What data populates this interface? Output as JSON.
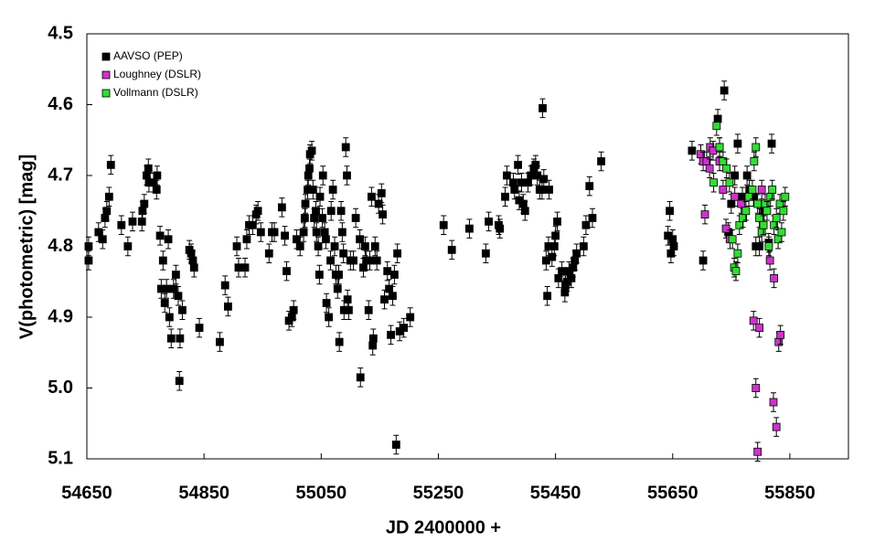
{
  "chart_data": {
    "type": "scatter",
    "x_label": "JD 2400000 +",
    "y_label": "V(photometric) [mag]",
    "xlim": [
      54650,
      55950
    ],
    "ylim": [
      4.5,
      5.1
    ],
    "y_inverted": true,
    "xticks": [
      54650,
      54850,
      55050,
      55250,
      55450,
      55650,
      55850
    ],
    "yticks": [
      4.5,
      4.6,
      4.7,
      4.8,
      4.9,
      {
        "value": 5,
        "label": "5.0"
      },
      5.1
    ],
    "legend": "upper left",
    "series": [
      {
        "name": "AAVSO (PEP)",
        "color": "#000000",
        "yerr": 0.008,
        "x": [
          54653,
          54653,
          54670,
          54677,
          54681,
          54684,
          54688,
          54691,
          54709,
          54720,
          54728,
          54744,
          54745,
          54748,
          54752,
          54755,
          54756,
          54764,
          54769,
          54770,
          54775,
          54780,
          54777,
          54783,
          54786,
          54789,
          54791,
          54794,
          54798,
          54802,
          54806,
          54808,
          54809,
          54813,
          54825,
          54828,
          54831,
          54833,
          54842,
          54877,
          54886,
          54891,
          54906,
          54909,
          54920,
          54923,
          54927,
          54933,
          54939,
          54942,
          54947,
          54961,
          54966,
          54970,
          54983,
          54988,
          54991,
          54995,
          55000,
          55003,
          55008,
          55014,
          55020,
          55022,
          55023,
          55027,
          55028,
          55030,
          55031,
          55034,
          55036,
          55038,
          55041,
          55042,
          55045,
          55047,
          55048,
          55052,
          55053,
          55056,
          55058,
          55059,
          55063,
          55066,
          55067,
          55070,
          55073,
          55075,
          55078,
          55080,
          55081,
          55084,
          55086,
          55088,
          55089,
          55092,
          55094,
          55095,
          55097,
          55100,
          55105,
          55109,
          55116,
          55117,
          55122,
          55125,
          55127,
          55131,
          55133,
          55136,
          55138,
          55139,
          55142,
          55145,
          55148,
          55153,
          55155,
          55158,
          55163,
          55166,
          55169,
          55172,
          55175,
          55178,
          55180,
          55184,
          55191,
          55202,
          55259,
          55273,
          55303,
          55331,
          55336,
          55353,
          55355,
          55364,
          55367,
          55378,
          55380,
          55386,
          55388,
          55392,
          55395,
          55398,
          55403,
          55408,
          55413,
          55416,
          55419,
          55423,
          55427,
          55428,
          55430,
          55434,
          55436,
          55438,
          55439,
          55444,
          55448,
          55450,
          55453,
          55455,
          55461,
          55466,
          55467,
          55470,
          55473,
          55477,
          55480,
          55483,
          55486,
          55498,
          55502,
          55508,
          55513,
          55528,
          55642,
          55645,
          55647,
          55650,
          55652,
          55683,
          55702,
          55727,
          55730,
          55738,
          55745,
          55750,
          55756,
          55761,
          55769,
          55777,
          55781,
          55788,
          55792,
          55798,
          55806,
          55814,
          55819
        ],
        "y": [
          4.8,
          4.82,
          4.78,
          4.79,
          4.76,
          4.75,
          4.73,
          4.685,
          4.77,
          4.8,
          4.765,
          4.765,
          4.75,
          4.74,
          4.7,
          4.69,
          4.71,
          4.71,
          4.72,
          4.7,
          4.785,
          4.82,
          4.86,
          4.88,
          4.86,
          4.79,
          4.9,
          4.93,
          4.86,
          4.84,
          4.87,
          4.99,
          4.93,
          4.89,
          4.805,
          4.81,
          4.82,
          4.83,
          4.915,
          4.935,
          4.855,
          4.885,
          4.8,
          4.83,
          4.83,
          4.79,
          4.77,
          4.77,
          4.755,
          4.75,
          4.78,
          4.81,
          4.78,
          4.78,
          4.745,
          4.785,
          4.835,
          4.905,
          4.9,
          4.89,
          4.79,
          4.8,
          4.78,
          4.76,
          4.74,
          4.72,
          4.7,
          4.69,
          4.67,
          4.665,
          4.72,
          4.76,
          4.75,
          4.78,
          4.8,
          4.84,
          4.73,
          4.76,
          4.7,
          4.78,
          4.79,
          4.88,
          4.9,
          4.82,
          4.75,
          4.72,
          4.8,
          4.84,
          4.86,
          4.84,
          4.935,
          4.75,
          4.78,
          4.81,
          4.89,
          4.66,
          4.7,
          4.875,
          4.89,
          4.82,
          4.82,
          4.76,
          4.79,
          4.985,
          4.83,
          4.8,
          4.82,
          4.89,
          4.82,
          4.73,
          4.94,
          4.93,
          4.8,
          4.82,
          4.74,
          4.725,
          4.755,
          4.875,
          4.835,
          4.86,
          4.925,
          4.87,
          4.84,
          5.08,
          4.81,
          4.92,
          4.915,
          4.9,
          4.77,
          4.805,
          4.775,
          4.81,
          4.765,
          4.77,
          4.775,
          4.73,
          4.7,
          4.71,
          4.72,
          4.685,
          4.735,
          4.71,
          4.74,
          4.75,
          4.71,
          4.7,
          4.69,
          4.685,
          4.7,
          4.72,
          4.72,
          4.605,
          4.705,
          4.82,
          4.87,
          4.8,
          4.72,
          4.815,
          4.8,
          4.785,
          4.765,
          4.845,
          4.835,
          4.865,
          4.855,
          4.85,
          4.835,
          4.845,
          4.83,
          4.82,
          4.81,
          4.8,
          4.77,
          4.715,
          4.76,
          4.68,
          4.785,
          4.75,
          4.81,
          4.79,
          4.8,
          4.665,
          4.82,
          4.62,
          4.66,
          4.58,
          4.78,
          4.74,
          4.7,
          4.655,
          4.73,
          4.7,
          4.72,
          4.73,
          4.8,
          4.8,
          4.75,
          4.795,
          4.655
        ]
      },
      {
        "name": "Loughney (DSLR)",
        "color": "#cc33cc",
        "yerr": 0.008,
        "x": [
          55698,
          55702,
          55705,
          55708,
          55713,
          55714,
          55719,
          55730,
          55736,
          55741,
          55748,
          55756,
          55767,
          55788,
          55792,
          55795,
          55798,
          55802,
          55816,
          55822,
          55823,
          55827,
          55831,
          55834
        ],
        "y": [
          4.67,
          4.68,
          4.755,
          4.68,
          4.69,
          4.66,
          4.665,
          4.68,
          4.72,
          4.775,
          4.79,
          4.73,
          4.74,
          4.905,
          5.0,
          5.09,
          4.915,
          4.72,
          4.82,
          5.02,
          4.845,
          5.055,
          4.935,
          4.925
        ]
      },
      {
        "name": "Vollmann (DSLR)",
        "color": "#33dd33",
        "yerr": 0.008,
        "x": [
          55720,
          55725,
          55730,
          55736,
          55742,
          55747,
          55752,
          55755,
          55758,
          55761,
          55764,
          55770,
          55775,
          55780,
          55786,
          55789,
          55792,
          55795,
          55798,
          55802,
          55805,
          55808,
          55811,
          55814,
          55817,
          55820,
          55823,
          55827,
          55830,
          55833,
          55836,
          55839,
          55842
        ],
        "y": [
          4.71,
          4.63,
          4.66,
          4.68,
          4.69,
          4.71,
          4.79,
          4.83,
          4.835,
          4.81,
          4.77,
          4.76,
          4.75,
          4.73,
          4.72,
          4.68,
          4.66,
          4.74,
          4.76,
          4.78,
          4.77,
          4.74,
          4.75,
          4.8,
          4.73,
          4.72,
          4.77,
          4.76,
          4.79,
          4.74,
          4.78,
          4.75,
          4.73
        ]
      }
    ]
  }
}
